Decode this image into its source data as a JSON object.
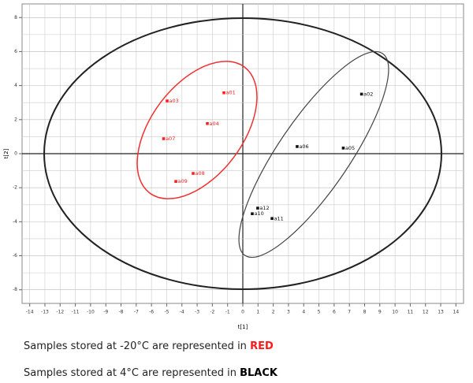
{
  "chart_data": {
    "type": "scatter",
    "xlabel": "t[1]",
    "ylabel": "t[2]",
    "xlim": [
      -14.5,
      14.5
    ],
    "ylim": [
      -8.8,
      8.8
    ],
    "xticks": [
      -14,
      -13,
      -12,
      -11,
      -10,
      -9,
      -8,
      -7,
      -6,
      -5,
      -4,
      -3,
      -2,
      -1,
      0,
      1,
      2,
      3,
      4,
      5,
      6,
      7,
      8,
      9,
      10,
      11,
      12,
      13,
      14
    ],
    "yticks": [
      -8,
      -6,
      -4,
      -2,
      0,
      2,
      4,
      6,
      8
    ],
    "yminor": [
      -7,
      -5,
      -3,
      -1,
      1,
      3,
      5,
      7
    ],
    "grid": true,
    "series": [
      {
        "name": "-20°C",
        "color": "#ff2020",
        "point_labels": [
          "a01",
          "a03",
          "a04",
          "a07",
          "a08",
          "a09"
        ],
        "x": [
          -1.24,
          -4.97,
          -2.33,
          -5.2,
          -3.26,
          -4.4
        ],
        "values": [
          3.58,
          3.1,
          1.77,
          0.88,
          -1.16,
          -1.63
        ]
      },
      {
        "name": "4°C",
        "color": "#111111",
        "point_labels": [
          "a02",
          "a06",
          "a05",
          "a12",
          "a10",
          "a11"
        ],
        "x": [
          7.8,
          3.57,
          6.6,
          0.98,
          0.62,
          1.92
        ],
        "values": [
          3.5,
          0.42,
          0.33,
          -3.2,
          -3.53,
          -3.81
        ]
      }
    ]
  },
  "notes": [
    {
      "text": "Samples stored at -20°C are represented in ",
      "highlight": "RED"
    },
    {
      "text": "Samples stored at 4°C are represented in ",
      "highlight": "BLACK"
    }
  ]
}
